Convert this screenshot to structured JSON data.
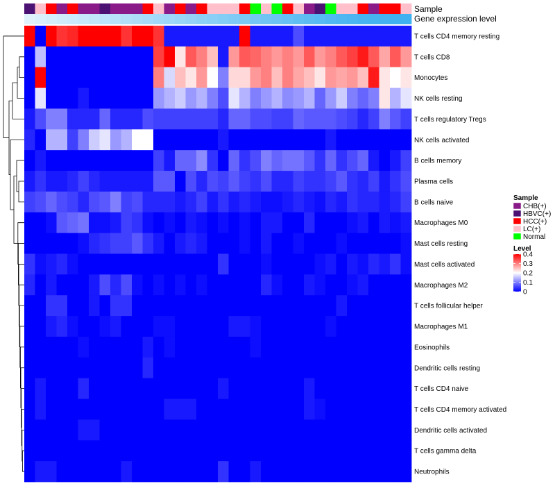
{
  "chart_data": {
    "type": "heatmap",
    "title": "",
    "annotation_labels": [
      "Sample",
      "Gene expression level"
    ],
    "rows": [
      "T cells CD4 memory resting",
      "T cells CD8",
      "Monocytes",
      "NK cells resting",
      "T cells regulatory  Tregs",
      "NK cells activated",
      "B cells memory",
      "Plasma cells",
      "B cells naive",
      "Macrophages M0",
      "Mast cells resting",
      "Mast cells activated",
      "Macrophages M2",
      "T cells follicular helper",
      "Macrophages M1",
      "Eosinophils",
      "Dendritic cells resting",
      "T cells CD4 naive",
      "T cells CD4 memory activated",
      "Dendritic cells activated",
      "T cells gamma delta",
      "Neutrophils"
    ],
    "sample_groups": [
      "HBVC(+)",
      "LC(+)",
      "HCC(+)",
      "CHB(+)",
      "HCC(+)",
      "CHB(+)",
      "CHB(+)",
      "HBVC(+)",
      "CHB(+)",
      "CHB(+)",
      "CHB(+)",
      "HCC(+)",
      "LC(+)",
      "CHB(+)",
      "HCC(+)",
      "CHB(+)",
      "HCC(+)",
      "LC(+)",
      "LC(+)",
      "LC(+)",
      "HCC(+)",
      "Normal",
      "LC(+)",
      "Normal",
      "HCC(+)",
      "LC(+)",
      "CHB(+)",
      "HBVC(+)",
      "Normal",
      "LC(+)",
      "LC(+)",
      "HCC(+)",
      "CHB(+)",
      "HCC(+)",
      "HCC(+)",
      "LC(+)"
    ],
    "expression_level": [
      0.05,
      0.08,
      0.11,
      0.14,
      0.17,
      0.2,
      0.23,
      0.26,
      0.29,
      0.32,
      0.35,
      0.38,
      0.41,
      0.44,
      0.47,
      0.5,
      0.53,
      0.56,
      0.59,
      0.62,
      0.65,
      0.68,
      0.71,
      0.74,
      0.77,
      0.8,
      0.83,
      0.86,
      0.89,
      0.91,
      0.93,
      0.95,
      0.96,
      0.97,
      0.98,
      1.0
    ],
    "values": [
      [
        0.4,
        0.0,
        0.4,
        0.36,
        0.37,
        0.4,
        0.4,
        0.4,
        0.4,
        0.36,
        0.4,
        0.4,
        0.36,
        0.02,
        0.02,
        0.02,
        0.02,
        0.02,
        0.02,
        0.02,
        0.4,
        0.02,
        0.02,
        0.02,
        0.02,
        0.06,
        0.02,
        0.02,
        0.02,
        0.02,
        0.02,
        0.02,
        0.02,
        0.02,
        0.02,
        0.02
      ],
      [
        0.0,
        0.15,
        0.0,
        0.0,
        0.0,
        0.0,
        0.0,
        0.0,
        0.0,
        0.0,
        0.0,
        0.0,
        0.35,
        0.4,
        0.22,
        0.33,
        0.3,
        0.25,
        0.02,
        0.28,
        0.33,
        0.32,
        0.3,
        0.28,
        0.3,
        0.28,
        0.33,
        0.28,
        0.3,
        0.33,
        0.35,
        0.38,
        0.33,
        0.27,
        0.33,
        0.28
      ],
      [
        0.0,
        0.4,
        0.0,
        0.0,
        0.0,
        0.0,
        0.0,
        0.0,
        0.0,
        0.0,
        0.0,
        0.0,
        0.3,
        0.17,
        0.25,
        0.22,
        0.28,
        0.2,
        0.1,
        0.23,
        0.23,
        0.28,
        0.3,
        0.25,
        0.3,
        0.27,
        0.25,
        0.22,
        0.28,
        0.27,
        0.28,
        0.25,
        0.38,
        0.22,
        0.2,
        0.22
      ],
      [
        0.0,
        0.18,
        0.0,
        0.0,
        0.0,
        0.02,
        0.0,
        0.0,
        0.0,
        0.0,
        0.0,
        0.0,
        0.12,
        0.14,
        0.16,
        0.12,
        0.14,
        0.1,
        0.06,
        0.18,
        0.14,
        0.1,
        0.12,
        0.14,
        0.11,
        0.12,
        0.14,
        0.08,
        0.12,
        0.16,
        0.1,
        0.08,
        0.1,
        0.22,
        0.14,
        0.18
      ],
      [
        0.02,
        0.06,
        0.1,
        0.1,
        0.03,
        0.03,
        0.03,
        0.08,
        0.03,
        0.03,
        0.03,
        0.06,
        0.05,
        0.05,
        0.05,
        0.05,
        0.05,
        0.05,
        0.03,
        0.08,
        0.08,
        0.06,
        0.06,
        0.05,
        0.05,
        0.08,
        0.07,
        0.07,
        0.07,
        0.06,
        0.05,
        0.03,
        0.05,
        0.1,
        0.07,
        0.05
      ],
      [
        0.03,
        0.0,
        0.14,
        0.14,
        0.05,
        0.1,
        0.16,
        0.18,
        0.12,
        0.14,
        0.2,
        0.2,
        0.0,
        0.0,
        0.0,
        0.0,
        0.0,
        0.0,
        0.02,
        0.0,
        0.0,
        0.0,
        0.0,
        0.0,
        0.0,
        0.0,
        0.0,
        0.0,
        0.02,
        0.0,
        0.0,
        0.0,
        0.0,
        0.0,
        0.0,
        0.0
      ],
      [
        0.0,
        0.02,
        0.0,
        0.0,
        0.0,
        0.0,
        0.0,
        0.0,
        0.0,
        0.0,
        0.0,
        0.0,
        0.05,
        0.02,
        0.08,
        0.08,
        0.11,
        0.04,
        0.0,
        0.08,
        0.04,
        0.06,
        0.1,
        0.08,
        0.09,
        0.09,
        0.07,
        0.04,
        0.08,
        0.04,
        0.06,
        0.08,
        0.02,
        0.0,
        0.02,
        0.05
      ],
      [
        0.02,
        0.04,
        0.02,
        0.02,
        0.03,
        0.05,
        0.03,
        0.02,
        0.02,
        0.02,
        0.02,
        0.02,
        0.07,
        0.07,
        0.0,
        0.06,
        0.03,
        0.06,
        0.05,
        0.07,
        0.05,
        0.04,
        0.06,
        0.03,
        0.03,
        0.05,
        0.04,
        0.04,
        0.05,
        0.07,
        0.04,
        0.03,
        0.05,
        0.02,
        0.04,
        0.06
      ],
      [
        0.05,
        0.06,
        0.08,
        0.06,
        0.05,
        0.03,
        0.06,
        0.07,
        0.1,
        0.05,
        0.06,
        0.03,
        0.03,
        0.03,
        0.02,
        0.03,
        0.05,
        0.02,
        0.04,
        0.02,
        0.03,
        0.02,
        0.01,
        0.01,
        0.02,
        0.03,
        0.02,
        0.01,
        0.03,
        0.02,
        0.04,
        0.03,
        0.03,
        0.02,
        0.03,
        0.05
      ],
      [
        0.0,
        0.0,
        0.01,
        0.07,
        0.08,
        0.09,
        0.01,
        0.01,
        0.02,
        0.05,
        0.04,
        0.01,
        0.0,
        0.01,
        0.0,
        0.02,
        0.01,
        0.0,
        0.01,
        0.0,
        0.01,
        0.0,
        0.02,
        0.02,
        0.0,
        0.0,
        0.03,
        0.0,
        0.0,
        0.0,
        0.01,
        0.02,
        0.0,
        0.02,
        0.01,
        0.02
      ],
      [
        0.0,
        0.0,
        0.0,
        0.0,
        0.0,
        0.01,
        0.03,
        0.04,
        0.05,
        0.05,
        0.07,
        0.04,
        0.02,
        0.0,
        0.02,
        0.03,
        0.02,
        0.0,
        0.0,
        0.0,
        0.01,
        0.0,
        0.02,
        0.0,
        0.0,
        0.01,
        0.0,
        0.0,
        0.0,
        0.01,
        0.0,
        0.0,
        0.0,
        0.0,
        0.0,
        0.01
      ],
      [
        0.04,
        0.01,
        0.02,
        0.03,
        0.01,
        0.0,
        0.0,
        0.0,
        0.0,
        0.0,
        0.0,
        0.0,
        0.0,
        0.0,
        0.0,
        0.0,
        0.0,
        0.0,
        0.04,
        0.0,
        0.0,
        0.0,
        0.01,
        0.0,
        0.0,
        0.0,
        0.0,
        0.01,
        0.02,
        0.0,
        0.02,
        0.01,
        0.03,
        0.02,
        0.04,
        0.01
      ],
      [
        0.03,
        0.0,
        0.02,
        0.0,
        0.0,
        0.0,
        0.02,
        0.06,
        0.03,
        0.06,
        0.01,
        0.0,
        0.01,
        0.0,
        0.01,
        0.0,
        0.01,
        0.0,
        0.0,
        0.0,
        0.0,
        0.0,
        0.03,
        0.01,
        0.0,
        0.0,
        0.02,
        0.01,
        0.0,
        0.0,
        0.01,
        0.02,
        0.0,
        0.0,
        0.0,
        0.0
      ],
      [
        0.0,
        0.0,
        0.04,
        0.04,
        0.0,
        0.0,
        0.02,
        0.0,
        0.04,
        0.04,
        0.0,
        0.0,
        0.0,
        0.0,
        0.0,
        0.0,
        0.0,
        0.0,
        0.0,
        0.0,
        0.0,
        0.0,
        0.0,
        0.0,
        0.0,
        0.0,
        0.0,
        0.0,
        0.0,
        0.02,
        0.0,
        0.0,
        0.0,
        0.0,
        0.0,
        0.0
      ],
      [
        0.0,
        0.0,
        0.02,
        0.03,
        0.01,
        0.0,
        0.0,
        0.01,
        0.02,
        0.0,
        0.0,
        0.0,
        0.01,
        0.01,
        0.0,
        0.0,
        0.0,
        0.0,
        0.0,
        0.02,
        0.02,
        0.01,
        0.0,
        0.0,
        0.0,
        0.0,
        0.0,
        0.0,
        0.01,
        0.0,
        0.0,
        0.0,
        0.0,
        0.0,
        0.0,
        0.0
      ],
      [
        0.0,
        0.0,
        0.0,
        0.0,
        0.0,
        0.01,
        0.0,
        0.0,
        0.0,
        0.0,
        0.0,
        0.02,
        0.0,
        0.01,
        0.0,
        0.0,
        0.0,
        0.0,
        0.0,
        0.0,
        0.0,
        0.01,
        0.0,
        0.0,
        0.0,
        0.0,
        0.0,
        0.0,
        0.0,
        0.0,
        0.0,
        0.0,
        0.0,
        0.0,
        0.0,
        0.0
      ],
      [
        0.0,
        0.0,
        0.0,
        0.0,
        0.0,
        0.0,
        0.0,
        0.0,
        0.0,
        0.0,
        0.0,
        0.03,
        0.0,
        0.0,
        0.0,
        0.0,
        0.0,
        0.0,
        0.0,
        0.0,
        0.0,
        0.0,
        0.0,
        0.0,
        0.0,
        0.0,
        0.0,
        0.0,
        0.0,
        0.0,
        0.0,
        0.0,
        0.0,
        0.0,
        0.0,
        0.0
      ],
      [
        0.0,
        0.02,
        0.0,
        0.0,
        0.0,
        0.03,
        0.0,
        0.0,
        0.0,
        0.0,
        0.0,
        0.0,
        0.0,
        0.0,
        0.0,
        0.0,
        0.0,
        0.0,
        0.02,
        0.0,
        0.0,
        0.0,
        0.0,
        0.0,
        0.0,
        0.0,
        0.02,
        0.0,
        0.0,
        0.0,
        0.0,
        0.0,
        0.0,
        0.0,
        0.0,
        0.0
      ],
      [
        0.0,
        0.02,
        0.0,
        0.0,
        0.0,
        0.0,
        0.0,
        0.0,
        0.0,
        0.0,
        0.0,
        0.0,
        0.0,
        0.02,
        0.02,
        0.02,
        0.0,
        0.0,
        0.0,
        0.0,
        0.0,
        0.0,
        0.0,
        0.0,
        0.0,
        0.0,
        0.02,
        0.01,
        0.0,
        0.0,
        0.0,
        0.0,
        0.0,
        0.0,
        0.0,
        0.0
      ],
      [
        0.0,
        0.0,
        0.0,
        0.0,
        0.0,
        0.02,
        0.02,
        0.0,
        0.0,
        0.0,
        0.0,
        0.0,
        0.0,
        0.0,
        0.0,
        0.0,
        0.0,
        0.0,
        0.0,
        0.0,
        0.0,
        0.0,
        0.0,
        0.0,
        0.0,
        0.0,
        0.0,
        0.0,
        0.0,
        0.0,
        0.0,
        0.0,
        0.0,
        0.0,
        0.0,
        0.0
      ],
      [
        0.0,
        0.0,
        0.0,
        0.0,
        0.0,
        0.0,
        0.0,
        0.0,
        0.0,
        0.0,
        0.0,
        0.0,
        0.0,
        0.0,
        0.0,
        0.0,
        0.0,
        0.0,
        0.0,
        0.0,
        0.0,
        0.0,
        0.0,
        0.0,
        0.0,
        0.0,
        0.0,
        0.0,
        0.0,
        0.0,
        0.0,
        0.0,
        0.0,
        0.0,
        0.0,
        0.0
      ],
      [
        0.0,
        0.02,
        0.02,
        0.0,
        0.0,
        0.0,
        0.0,
        0.0,
        0.0,
        0.02,
        0.0,
        0.0,
        0.0,
        0.0,
        0.0,
        0.0,
        0.0,
        0.0,
        0.04,
        0.0,
        0.0,
        0.02,
        0.0,
        0.0,
        0.0,
        0.0,
        0.0,
        0.0,
        0.0,
        0.0,
        0.0,
        0.0,
        0.0,
        0.0,
        0.0,
        0.0
      ]
    ],
    "legend": {
      "sample_title": "Sample",
      "sample_items": [
        {
          "label": "CHB(+)",
          "color": "#8B1A89"
        },
        {
          "label": "HBVC(+)",
          "color": "#4B1173"
        },
        {
          "label": "HCC(+)",
          "color": "#FF0000"
        },
        {
          "label": "LC(+)",
          "color": "#FFC0CB"
        },
        {
          "label": "Normal",
          "color": "#00FF00"
        }
      ],
      "level_title": "Level",
      "level_ticks": [
        "0.4",
        "0.3",
        "0.2",
        "0.1",
        "0"
      ],
      "level_tick_values": [
        0.4,
        0.3,
        0.2,
        0.1,
        0.0
      ],
      "level_range": [
        0,
        0.4
      ]
    },
    "colors": {
      "low": "#0000FF",
      "mid": "#FFFFFF",
      "high": "#FF0000",
      "expr_low": "#E8F6FD",
      "expr_high": "#3FB0F0"
    }
  }
}
